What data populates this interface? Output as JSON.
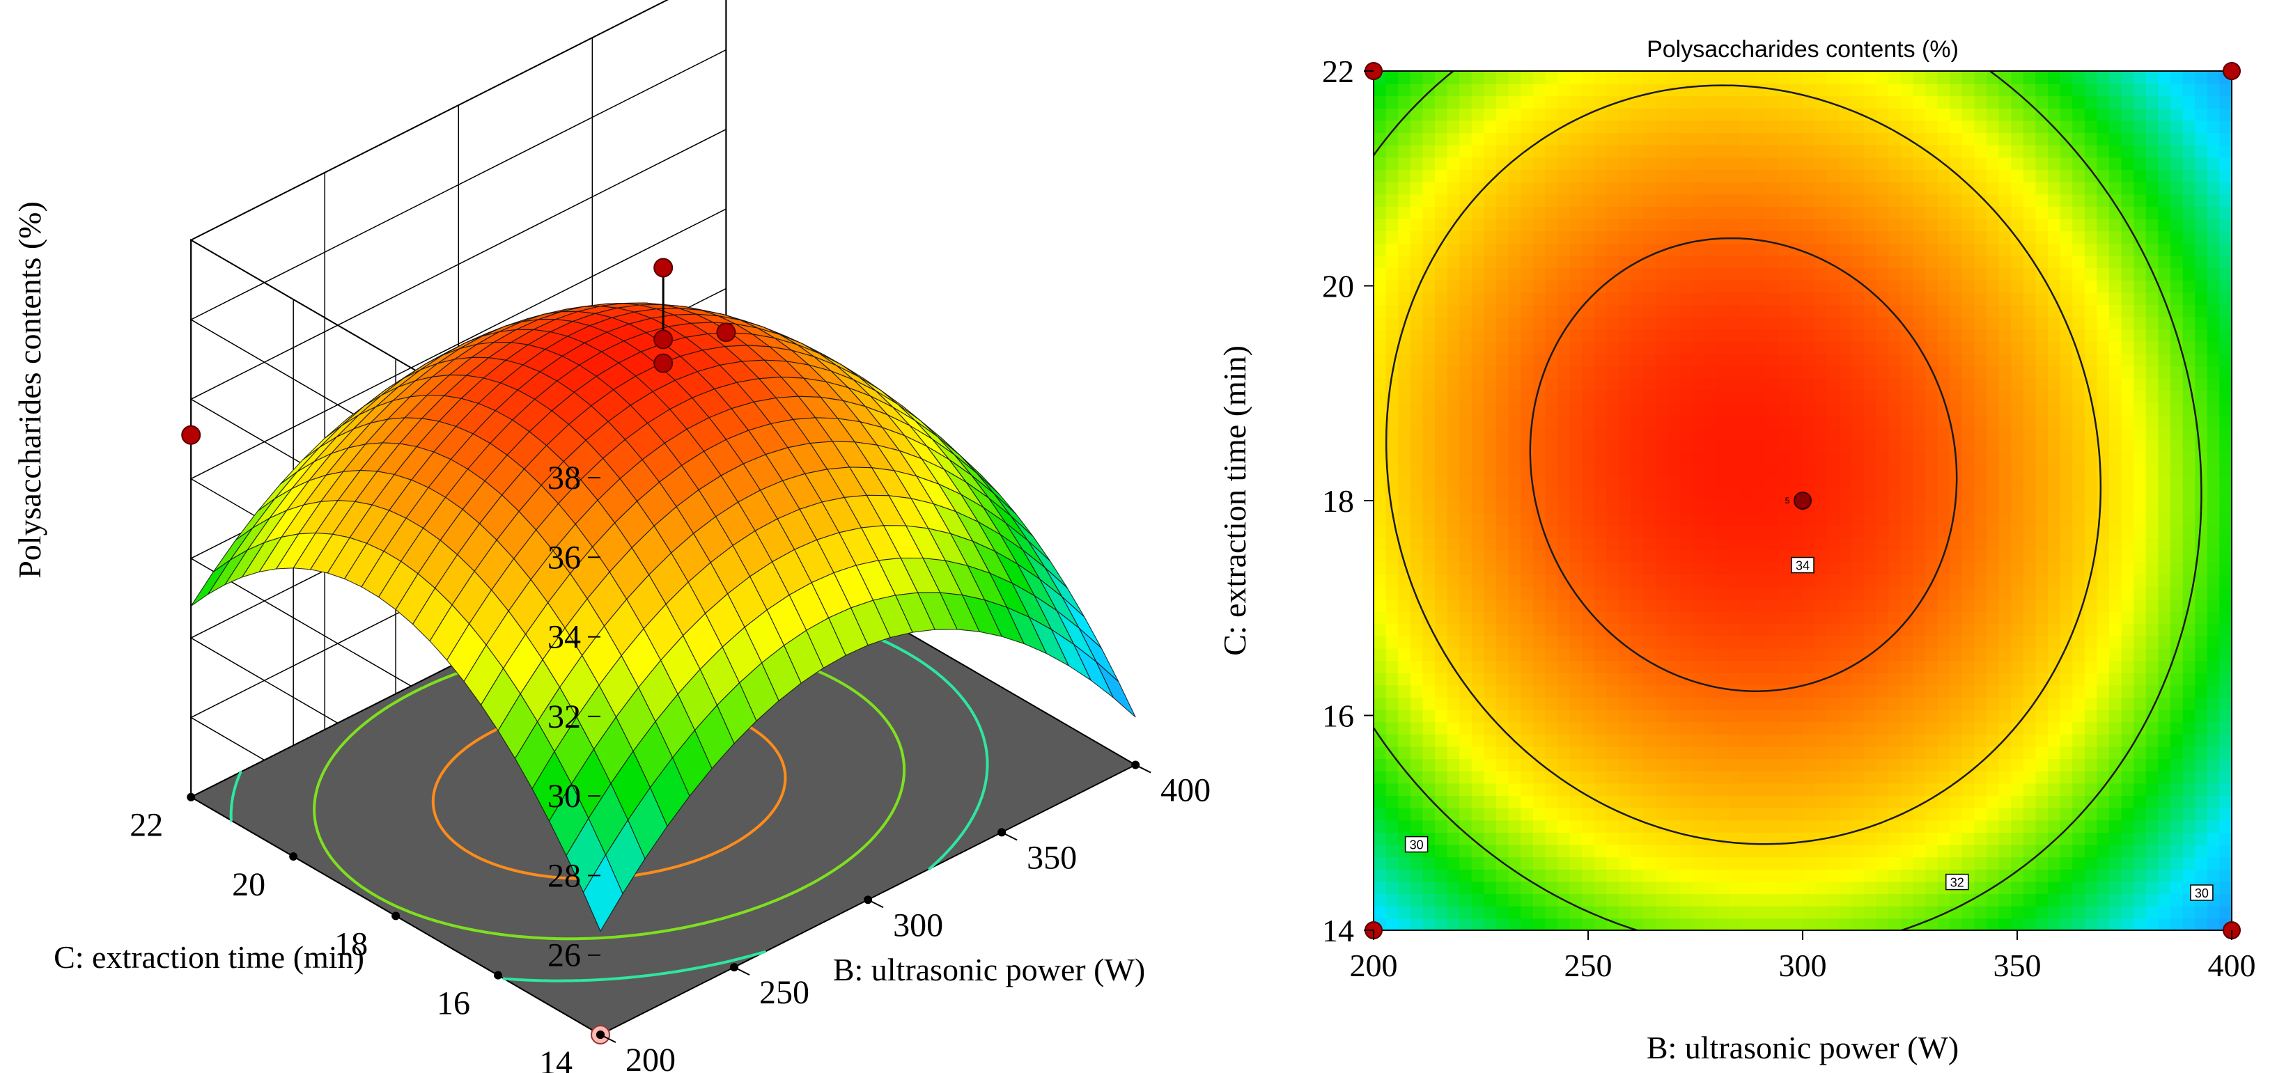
{
  "chart_data": [
    {
      "type": "surface",
      "zlabel": "Polysaccharides contents (%)",
      "xlabel": "B: ultrasonic power (W)",
      "ylabel": "C: extraction time (min)",
      "x_ticks": [
        "200",
        "250",
        "300",
        "350",
        "400"
      ],
      "y_ticks": [
        "14",
        "16",
        "18",
        "20",
        "22"
      ],
      "z_ticks": [
        "26",
        "28",
        "30",
        "32",
        "34",
        "36",
        "38"
      ],
      "xlim": [
        200,
        400
      ],
      "ylim": [
        14,
        22
      ],
      "zlim": [
        24,
        38
      ],
      "colormap": [
        "#1e90ff",
        "#00e5ff",
        "#00e000",
        "#ffff00",
        "#ff8c00",
        "#ff0000"
      ],
      "floor_color": "#5a5a5a",
      "design_points": [
        {
          "x": 300,
          "y": 18,
          "z": 36.9
        },
        {
          "x": 300,
          "y": 18,
          "z": 35.1
        },
        {
          "x": 300,
          "y": 18,
          "z": 34.5
        },
        {
          "x": 200,
          "y": 22,
          "z": 33.1
        },
        {
          "x": 400,
          "y": 22,
          "z": 28.9
        },
        {
          "x": 200,
          "y": 14,
          "z": 24.0
        }
      ]
    },
    {
      "type": "contour",
      "title": "Polysaccharides contents (%)",
      "xlabel": "B: ultrasonic power (W)",
      "ylabel": "C: extraction time (min)",
      "x_ticks": [
        "200",
        "250",
        "300",
        "350",
        "400"
      ],
      "y_ticks": [
        "14",
        "16",
        "18",
        "20",
        "22"
      ],
      "xlim": [
        200,
        400
      ],
      "ylim": [
        14,
        22
      ],
      "contour_levels": [
        {
          "level": 34,
          "label": "34"
        },
        {
          "level": 32,
          "label": "32"
        },
        {
          "level": 30,
          "label": "30"
        }
      ],
      "center_point": {
        "x": 300,
        "y": 18,
        "label": "5"
      },
      "corner_points": [
        {
          "x": 200,
          "y": 22
        },
        {
          "x": 400,
          "y": 22
        },
        {
          "x": 200,
          "y": 14
        },
        {
          "x": 400,
          "y": 14
        }
      ],
      "colormap": [
        "#1e90ff",
        "#00e5ff",
        "#00e000",
        "#ffff00",
        "#ff8c00",
        "#ff0000"
      ]
    }
  ]
}
